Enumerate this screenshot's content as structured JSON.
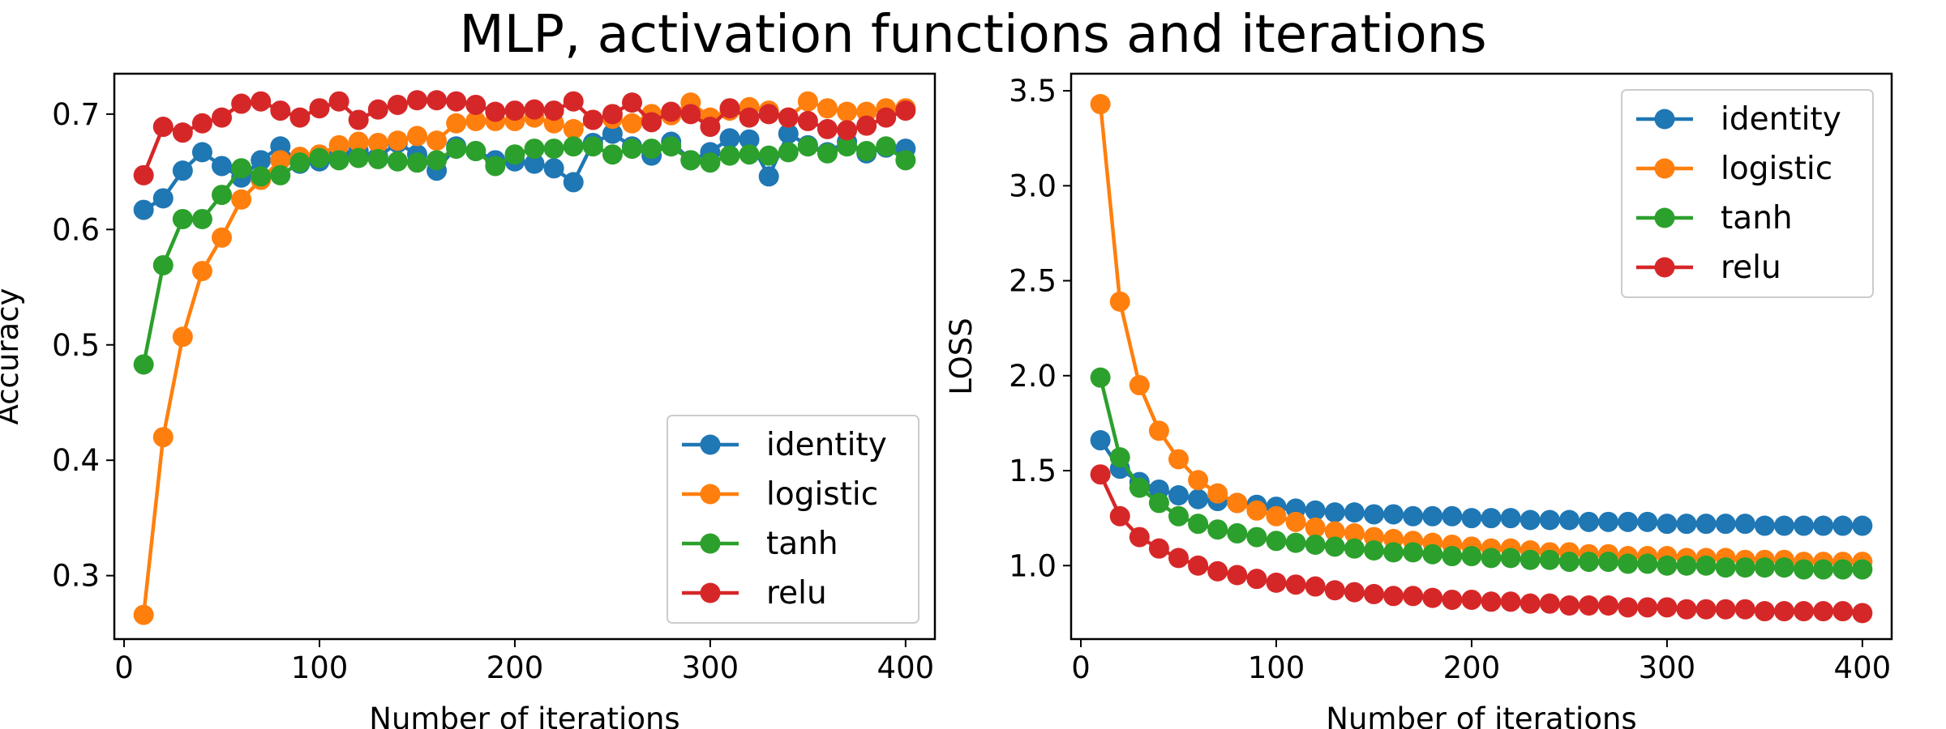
{
  "figure": {
    "suptitle": "MLP, activation functions and iterations"
  },
  "colors": {
    "identity": "#1f77b4",
    "logistic": "#ff7f0e",
    "tanh": "#2ca02c",
    "relu": "#d62728"
  },
  "chart_data": [
    {
      "type": "line",
      "marker": "circle",
      "xlabel": "Number of iterations",
      "ylabel": "Accuracy",
      "xlim": [
        -5,
        415
      ],
      "ylim": [
        0.245,
        0.735
      ],
      "xticks": [
        0,
        100,
        200,
        300,
        400
      ],
      "yticks": [
        0.3,
        0.4,
        0.5,
        0.6,
        0.7
      ],
      "xtick_labels": [
        "0",
        "100",
        "200",
        "300",
        "400"
      ],
      "ytick_labels": [
        "0.3",
        "0.4",
        "0.5",
        "0.6",
        "0.7"
      ],
      "legend_loc": "lower-right",
      "grid": false,
      "x": [
        10,
        20,
        30,
        40,
        50,
        60,
        70,
        80,
        90,
        100,
        110,
        120,
        130,
        140,
        150,
        160,
        170,
        180,
        190,
        200,
        210,
        220,
        230,
        240,
        250,
        260,
        270,
        280,
        290,
        300,
        310,
        320,
        330,
        340,
        350,
        360,
        370,
        380,
        390,
        400
      ],
      "series": [
        {
          "name": "identity",
          "values": [
            0.617,
            0.627,
            0.651,
            0.667,
            0.655,
            0.645,
            0.66,
            0.672,
            0.657,
            0.659,
            0.665,
            0.668,
            0.663,
            0.675,
            0.665,
            0.651,
            0.672,
            0.668,
            0.66,
            0.659,
            0.657,
            0.653,
            0.641,
            0.675,
            0.683,
            0.672,
            0.664,
            0.676,
            0.66,
            0.667,
            0.679,
            0.678,
            0.646,
            0.683,
            0.673,
            0.667,
            0.676,
            0.666,
            0.671,
            0.67
          ]
        },
        {
          "name": "logistic",
          "values": [
            0.266,
            0.42,
            0.507,
            0.564,
            0.593,
            0.626,
            0.643,
            0.66,
            0.663,
            0.665,
            0.673,
            0.676,
            0.675,
            0.677,
            0.681,
            0.677,
            0.692,
            0.694,
            0.694,
            0.694,
            0.697,
            0.692,
            0.687,
            0.695,
            0.696,
            0.692,
            0.7,
            0.699,
            0.71,
            0.697,
            0.703,
            0.706,
            0.703,
            0.697,
            0.711,
            0.705,
            0.702,
            0.702,
            0.705,
            0.705
          ]
        },
        {
          "name": "tanh",
          "values": [
            0.483,
            0.569,
            0.609,
            0.609,
            0.63,
            0.653,
            0.646,
            0.647,
            0.658,
            0.662,
            0.66,
            0.662,
            0.661,
            0.659,
            0.658,
            0.66,
            0.67,
            0.668,
            0.655,
            0.665,
            0.67,
            0.67,
            0.672,
            0.672,
            0.665,
            0.67,
            0.67,
            0.672,
            0.66,
            0.658,
            0.664,
            0.665,
            0.664,
            0.667,
            0.672,
            0.666,
            0.672,
            0.668,
            0.672,
            0.66
          ]
        },
        {
          "name": "relu",
          "values": [
            0.647,
            0.689,
            0.684,
            0.692,
            0.697,
            0.709,
            0.711,
            0.703,
            0.697,
            0.705,
            0.711,
            0.695,
            0.704,
            0.708,
            0.712,
            0.712,
            0.711,
            0.708,
            0.702,
            0.703,
            0.704,
            0.703,
            0.711,
            0.695,
            0.7,
            0.71,
            0.693,
            0.702,
            0.7,
            0.689,
            0.705,
            0.697,
            0.7,
            0.697,
            0.694,
            0.687,
            0.686,
            0.69,
            0.697,
            0.703
          ]
        }
      ]
    },
    {
      "type": "line",
      "marker": "circle",
      "xlabel": "Number of iterations",
      "ylabel": "LOSS",
      "xlim": [
        -5,
        415
      ],
      "ylim": [
        0.613,
        3.59
      ],
      "xticks": [
        0,
        100,
        200,
        300,
        400
      ],
      "yticks": [
        1.0,
        1.5,
        2.0,
        2.5,
        3.0,
        3.5
      ],
      "xtick_labels": [
        "0",
        "100",
        "200",
        "300",
        "400"
      ],
      "ytick_labels": [
        "1.0",
        "1.5",
        "2.0",
        "2.5",
        "3.0",
        "3.5"
      ],
      "legend_loc": "upper-right",
      "grid": false,
      "x": [
        10,
        20,
        30,
        40,
        50,
        60,
        70,
        80,
        90,
        100,
        110,
        120,
        130,
        140,
        150,
        160,
        170,
        180,
        190,
        200,
        210,
        220,
        230,
        240,
        250,
        260,
        270,
        280,
        290,
        300,
        310,
        320,
        330,
        340,
        350,
        360,
        370,
        380,
        390,
        400
      ],
      "series": [
        {
          "name": "identity",
          "values": [
            1.66,
            1.51,
            1.44,
            1.4,
            1.37,
            1.35,
            1.34,
            1.33,
            1.32,
            1.31,
            1.3,
            1.29,
            1.28,
            1.28,
            1.27,
            1.27,
            1.26,
            1.26,
            1.26,
            1.25,
            1.25,
            1.25,
            1.24,
            1.24,
            1.24,
            1.23,
            1.23,
            1.23,
            1.23,
            1.22,
            1.22,
            1.22,
            1.22,
            1.22,
            1.21,
            1.21,
            1.21,
            1.21,
            1.21,
            1.21
          ]
        },
        {
          "name": "logistic",
          "values": [
            3.43,
            2.39,
            1.95,
            1.71,
            1.56,
            1.45,
            1.38,
            1.33,
            1.29,
            1.26,
            1.23,
            1.2,
            1.18,
            1.17,
            1.15,
            1.14,
            1.13,
            1.12,
            1.11,
            1.1,
            1.09,
            1.09,
            1.08,
            1.07,
            1.07,
            1.06,
            1.06,
            1.05,
            1.05,
            1.05,
            1.04,
            1.04,
            1.04,
            1.03,
            1.03,
            1.03,
            1.02,
            1.02,
            1.02,
            1.02
          ]
        },
        {
          "name": "tanh",
          "values": [
            1.99,
            1.57,
            1.41,
            1.33,
            1.26,
            1.22,
            1.19,
            1.17,
            1.15,
            1.13,
            1.12,
            1.11,
            1.1,
            1.09,
            1.08,
            1.07,
            1.07,
            1.06,
            1.05,
            1.05,
            1.04,
            1.04,
            1.03,
            1.03,
            1.02,
            1.02,
            1.02,
            1.01,
            1.01,
            1.0,
            1.0,
            1.0,
            0.99,
            0.99,
            0.99,
            0.99,
            0.98,
            0.98,
            0.98,
            0.98
          ]
        },
        {
          "name": "relu",
          "values": [
            1.48,
            1.26,
            1.15,
            1.09,
            1.04,
            1.0,
            0.97,
            0.95,
            0.93,
            0.91,
            0.9,
            0.89,
            0.87,
            0.86,
            0.85,
            0.84,
            0.84,
            0.83,
            0.82,
            0.82,
            0.81,
            0.81,
            0.8,
            0.8,
            0.79,
            0.79,
            0.79,
            0.78,
            0.78,
            0.78,
            0.77,
            0.77,
            0.77,
            0.77,
            0.76,
            0.76,
            0.76,
            0.76,
            0.76,
            0.75
          ]
        }
      ]
    }
  ]
}
